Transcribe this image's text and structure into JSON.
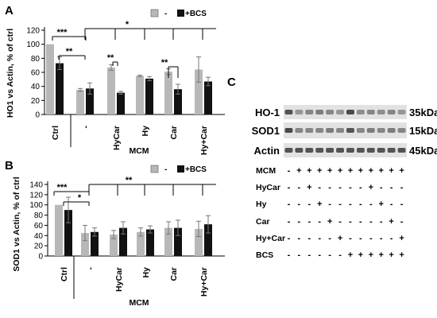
{
  "colors": {
    "grey": "#b8b8b8",
    "black": "#111111",
    "blot_bg": "#e2e2e2",
    "band": "#3a3a3a"
  },
  "chart_data": [
    {
      "panel": "A",
      "type": "bar",
      "ylabel": "HO1 vs Actin, % of ctrl",
      "ylim": [
        0,
        120
      ],
      "yticks": [
        0,
        20,
        40,
        60,
        80,
        100,
        120
      ],
      "categories": [
        "Ctrl",
        "-",
        "HyCar",
        "Hy",
        "Car",
        "Hy+Car"
      ],
      "group_label": "MCM",
      "legend": [
        "-",
        "+BCS"
      ],
      "series": [
        {
          "name": "-",
          "values": [
            100,
            35,
            67,
            55,
            61,
            64
          ],
          "errors": [
            0,
            2,
            4,
            1,
            4,
            18
          ]
        },
        {
          "name": "+BCS",
          "values": [
            73,
            37,
            31,
            51,
            36,
            47
          ],
          "errors": [
            9,
            8,
            2,
            3,
            7,
            6
          ]
        }
      ],
      "significance": [
        "***",
        "**",
        "**",
        "*",
        "**"
      ]
    },
    {
      "panel": "B",
      "type": "bar",
      "ylabel": "SOD1 vs Actin, % of ctrl",
      "ylim": [
        0,
        140
      ],
      "yticks": [
        0,
        20,
        40,
        60,
        80,
        100,
        120,
        140
      ],
      "categories": [
        "Ctrl",
        "-",
        "HyCar",
        "Hy",
        "Car",
        "Hy+Car"
      ],
      "group_label": "MCM",
      "legend": [
        "-",
        "+BCS"
      ],
      "series": [
        {
          "name": "-",
          "values": [
            100,
            45,
            42,
            47,
            55,
            53
          ],
          "errors": [
            0,
            15,
            8,
            8,
            12,
            15
          ]
        },
        {
          "name": "+BCS",
          "values": [
            90,
            47,
            55,
            52,
            55,
            62
          ],
          "errors": [
            25,
            8,
            12,
            7,
            15,
            17
          ]
        }
      ],
      "significance": [
        "***",
        "*",
        "**"
      ]
    }
  ],
  "blot": {
    "panel": "C",
    "bands": [
      "HO-1",
      "SOD1",
      "Actin"
    ],
    "sizes": [
      "35kDa",
      "15kDa",
      "45kDa"
    ],
    "conditions": [
      {
        "label": "MCM",
        "marks": [
          "-",
          "+",
          "+",
          "+",
          "+",
          "+",
          "+",
          "+",
          "+",
          "+",
          "+",
          "+"
        ]
      },
      {
        "label": "HyCar",
        "marks": [
          "-",
          "-",
          "+",
          "-",
          "-",
          "-",
          "-",
          "-",
          "+",
          "-",
          "-",
          "-"
        ]
      },
      {
        "label": "Hy",
        "marks": [
          "-",
          "-",
          "-",
          "+",
          "-",
          "-",
          "-",
          "-",
          "-",
          "+",
          "-",
          "-"
        ]
      },
      {
        "label": "Car",
        "marks": [
          "-",
          "-",
          "-",
          "-",
          "+",
          "-",
          "-",
          "-",
          "-",
          "-",
          "+",
          "-"
        ]
      },
      {
        "label": "Hy+Car",
        "marks": [
          "-",
          "-",
          "-",
          "-",
          "-",
          "+",
          "-",
          "-",
          "-",
          "-",
          "-",
          "+"
        ]
      },
      {
        "label": "BCS",
        "marks": [
          "-",
          "-",
          "-",
          "-",
          "-",
          "-",
          "+",
          "+",
          "+",
          "+",
          "+",
          "+"
        ]
      }
    ]
  }
}
